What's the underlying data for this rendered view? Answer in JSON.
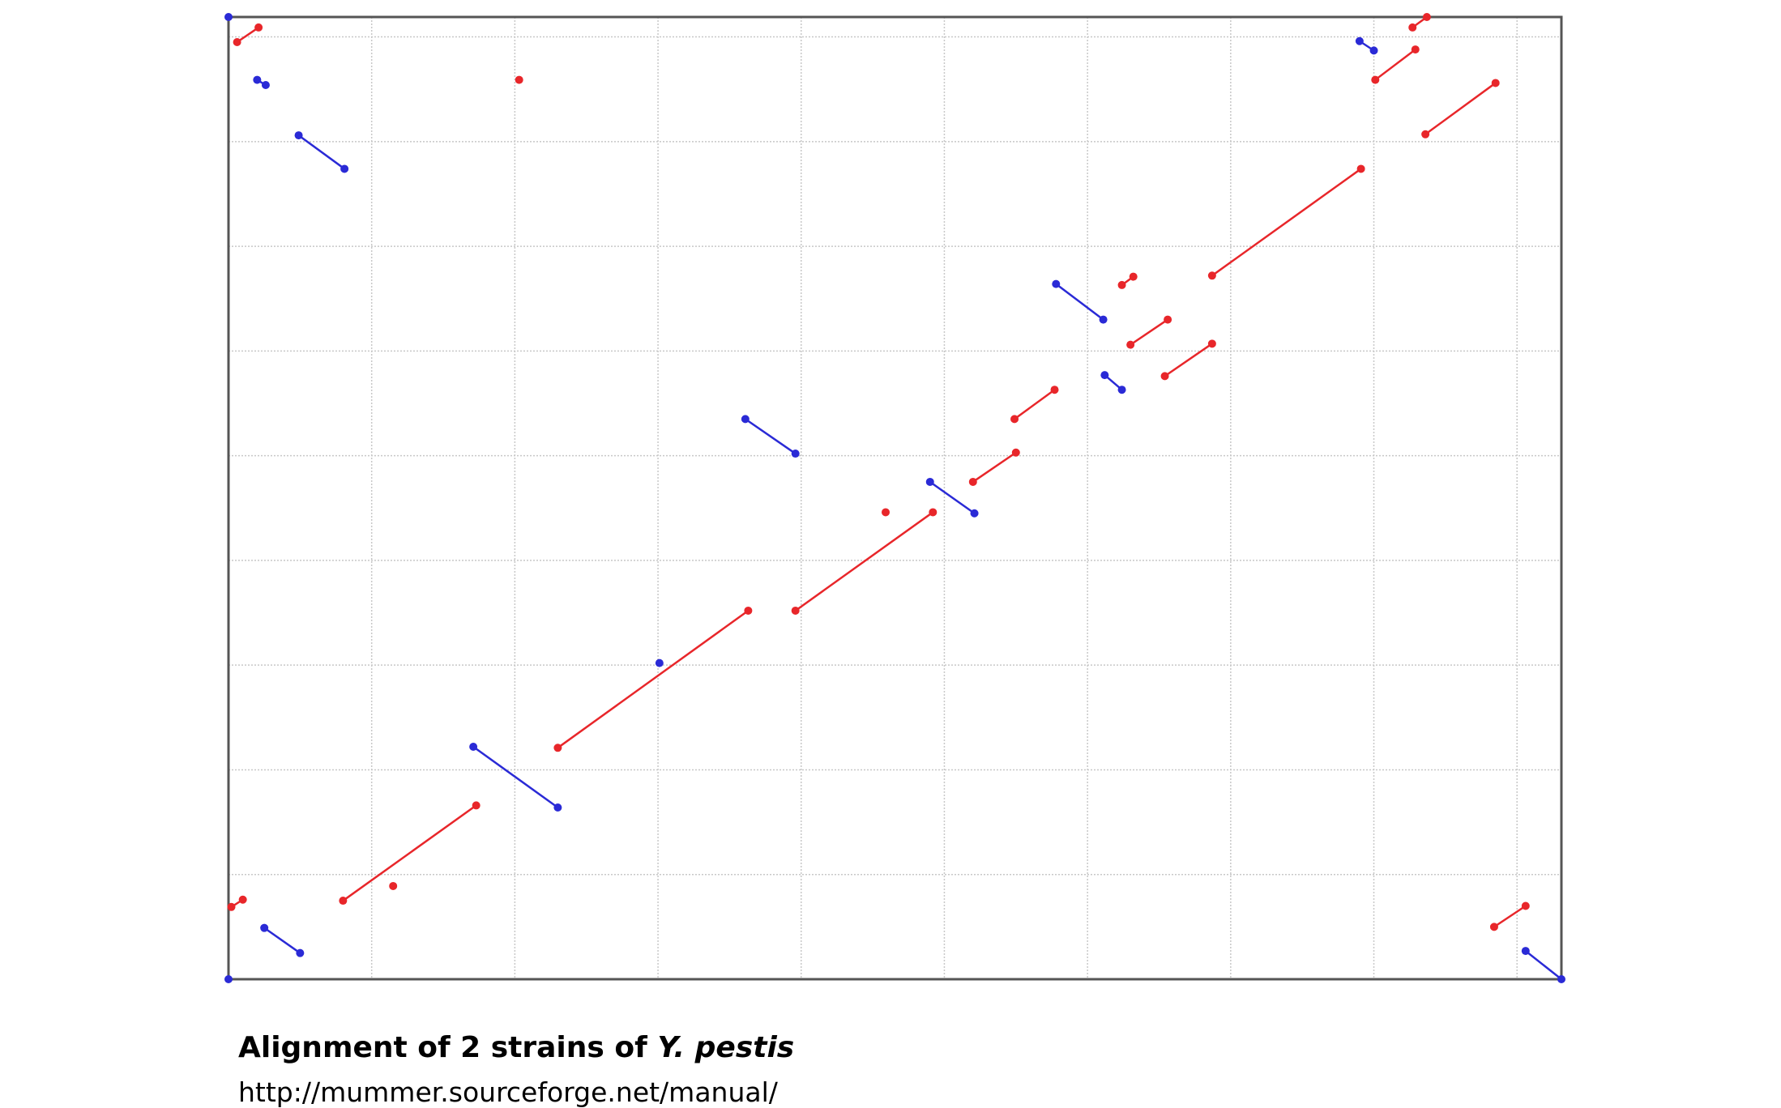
{
  "chart_data": {
    "type": "dotplot",
    "caption": {
      "text": "Alignment of 2 strains of",
      "italic": "Y. pestis"
    },
    "source": "http://mummer.sourceforge.net/manual/",
    "xlim": [
      0,
      9.31
    ],
    "ylim": [
      0,
      9.19
    ],
    "xticks": [
      1,
      2,
      3,
      4,
      5,
      6,
      7,
      8,
      9
    ],
    "yticks": [
      1,
      2,
      3,
      4,
      5,
      6,
      7,
      8,
      9
    ],
    "grid": true,
    "series": [
      {
        "color": "#e8262a",
        "segments": [
          {
            "x": [
              0.06,
              0.21
            ],
            "y": [
              8.95,
              9.09
            ]
          },
          {
            "x": [
              2.03
            ],
            "y": [
              8.59
            ]
          },
          {
            "x": [
              0.02,
              0.1
            ],
            "y": [
              0.69,
              0.76
            ]
          },
          {
            "x": [
              0.8,
              1.73
            ],
            "y": [
              0.75,
              1.66
            ]
          },
          {
            "x": [
              1.15
            ],
            "y": [
              0.89
            ]
          },
          {
            "x": [
              2.3,
              3.63
            ],
            "y": [
              2.21,
              3.52
            ]
          },
          {
            "x": [
              3.96,
              4.92
            ],
            "y": [
              3.52,
              4.46
            ]
          },
          {
            "x": [
              4.59
            ],
            "y": [
              4.46
            ]
          },
          {
            "x": [
              5.2,
              5.5
            ],
            "y": [
              4.75,
              5.03
            ]
          },
          {
            "x": [
              5.49,
              5.77
            ],
            "y": [
              5.35,
              5.63
            ]
          },
          {
            "x": [
              6.3,
              6.56
            ],
            "y": [
              6.06,
              6.3
            ]
          },
          {
            "x": [
              6.54,
              6.87
            ],
            "y": [
              5.76,
              6.07
            ]
          },
          {
            "x": [
              6.24,
              6.32
            ],
            "y": [
              6.63,
              6.71
            ]
          },
          {
            "x": [
              6.87,
              7.91
            ],
            "y": [
              6.72,
              7.74
            ]
          },
          {
            "x": [
              8.01,
              8.29
            ],
            "y": [
              8.59,
              8.88
            ]
          },
          {
            "x": [
              8.27,
              8.37
            ],
            "y": [
              9.09,
              9.19
            ]
          },
          {
            "x": [
              8.36,
              8.85
            ],
            "y": [
              8.07,
              8.56
            ]
          },
          {
            "x": [
              8.84,
              9.06
            ],
            "y": [
              0.5,
              0.7
            ]
          }
        ]
      },
      {
        "color": "#2a2ad6",
        "segments": [
          {
            "x": [
              0.2,
              0.26
            ],
            "y": [
              8.59,
              8.54
            ]
          },
          {
            "x": [
              0.49,
              0.81
            ],
            "y": [
              8.06,
              7.74
            ]
          },
          {
            "x": [
              0.25,
              0.5
            ],
            "y": [
              0.49,
              0.25
            ]
          },
          {
            "x": [
              1.71,
              2.3
            ],
            "y": [
              2.22,
              1.64
            ]
          },
          {
            "x": [
              3.01
            ],
            "y": [
              3.02
            ]
          },
          {
            "x": [
              3.61,
              3.96
            ],
            "y": [
              5.35,
              5.02
            ]
          },
          {
            "x": [
              4.9,
              5.21
            ],
            "y": [
              4.75,
              4.45
            ]
          },
          {
            "x": [
              5.78,
              6.11
            ],
            "y": [
              6.64,
              6.3
            ]
          },
          {
            "x": [
              6.12,
              6.24
            ],
            "y": [
              5.77,
              5.63
            ]
          },
          {
            "x": [
              7.9,
              8.0
            ],
            "y": [
              8.96,
              8.87
            ]
          },
          {
            "x": [
              9.06,
              9.31
            ],
            "y": [
              0.27,
              0
            ]
          },
          {
            "x": [
              0
            ],
            "y": [
              9.19
            ]
          },
          {
            "x": [
              0
            ],
            "y": [
              0
            ]
          }
        ]
      }
    ]
  }
}
